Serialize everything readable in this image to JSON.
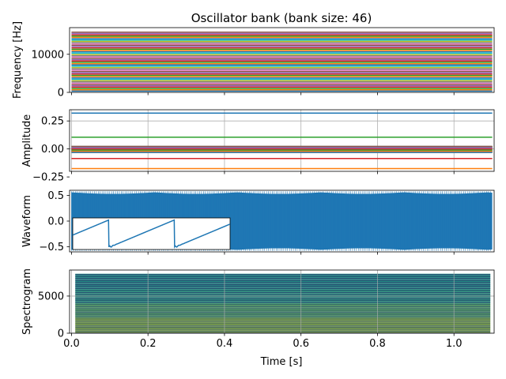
{
  "chart_data": {
    "type": "line",
    "title": "Oscillator bank (bank size: 46)",
    "xlabel": "Time [s]",
    "xlim": [
      -0.005,
      1.105
    ],
    "x_ticks": [
      "0.0",
      "0.2",
      "0.4",
      "0.6",
      "0.8",
      "1.0"
    ],
    "x_tick_values": [
      0.0,
      0.2,
      0.4,
      0.6,
      0.8,
      1.0
    ],
    "panels": [
      {
        "id": "frequency",
        "ylabel": "Frequency [Hz]",
        "ylim": [
          0,
          17000
        ],
        "y_ticks": [
          "0",
          "10000"
        ],
        "y_tick_values": [
          0,
          10000
        ],
        "grid": false,
        "series_count": 46,
        "freq_min": 330,
        "freq_max": 15800
      },
      {
        "id": "amplitude",
        "ylabel": "Amplitude",
        "ylim": [
          -0.2,
          0.35
        ],
        "y_ticks": [
          "0.25",
          "0.00",
          "−0.25"
        ],
        "y_tick_values": [
          0.25,
          0.0,
          -0.25
        ],
        "grid": true,
        "highlight_levels": [
          {
            "value": 0.32,
            "color": "#1f77b4"
          },
          {
            "value": 0.105,
            "color": "#2ca02c"
          },
          {
            "value": -0.085,
            "color": "#d62728"
          },
          {
            "value": -0.175,
            "color": "#ff7f0e"
          }
        ],
        "cluster_range": [
          -0.03,
          0.03
        ]
      },
      {
        "id": "waveform",
        "ylabel": "Waveform",
        "ylim": [
          -0.6,
          0.6
        ],
        "y_ticks": [
          "0.5",
          "0.0",
          "−0.5"
        ],
        "y_tick_values": [
          0.5,
          0.0,
          -0.5
        ],
        "grid": false,
        "envelope_max": 0.56,
        "envelope_min": -0.56,
        "inset": {
          "type": "sawtooth",
          "periods": 2.4,
          "amplitude": 0.5
        }
      },
      {
        "id": "spectrogram",
        "ylabel": "Spectrogram",
        "ylim": [
          0,
          8500
        ],
        "y_ticks": [
          "0",
          "5000"
        ],
        "y_tick_values": [
          0,
          5000
        ],
        "grid": true,
        "x_extent": [
          0.01,
          1.095
        ],
        "band_count": 46
      }
    ],
    "colors": {
      "tab10": [
        "#1f77b4",
        "#ff7f0e",
        "#2ca02c",
        "#d62728",
        "#9467bd",
        "#8c564b",
        "#e377c2",
        "#7f7f7f",
        "#bcbd22",
        "#17becf"
      ]
    }
  }
}
